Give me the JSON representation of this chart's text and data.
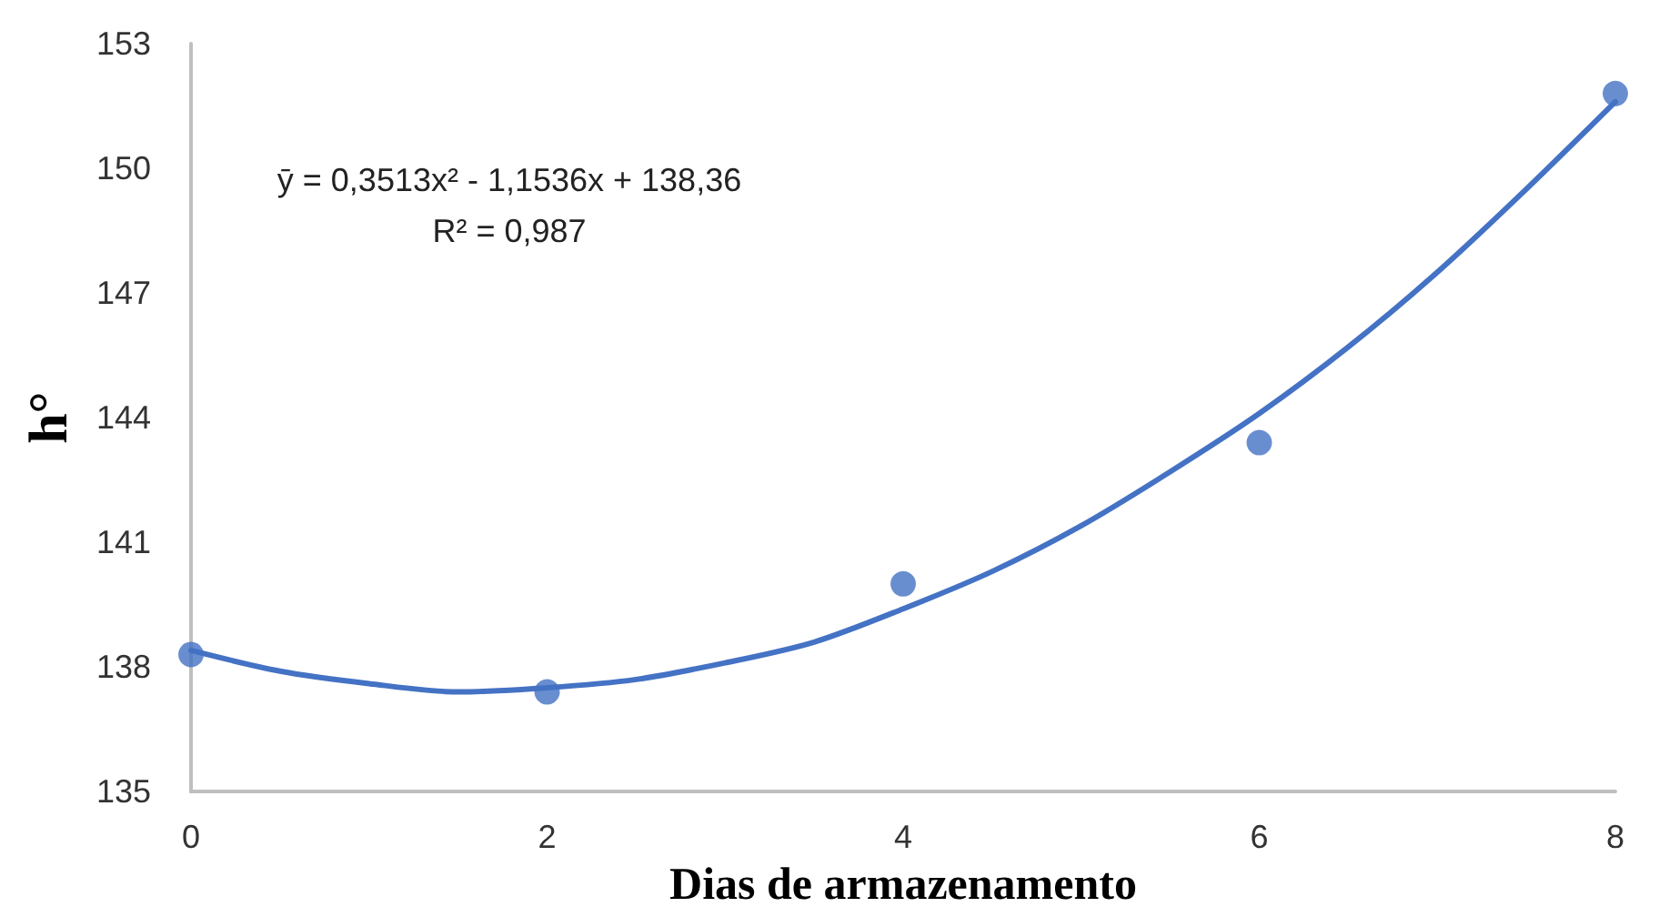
{
  "chart_data": {
    "type": "scatter",
    "xlabel": "Dias de armazenamento",
    "ylabel": "h°",
    "annotations": [
      "ȳ = 0,3513x² - 1,1536x + 138,36",
      "R² = 0,987"
    ],
    "x": [
      0,
      2,
      4,
      6,
      8
    ],
    "series": [
      {
        "color": "#4472c4",
        "marker": "circle",
        "values": [
          138.3,
          137.4,
          140.0,
          143.4,
          151.8
        ]
      },
      {
        "type": "line",
        "color": "#4472c4",
        "marker": "none",
        "line_style": "solid",
        "x": [
          0,
          0.5,
          1,
          1.5,
          2,
          2.5,
          3,
          3.5,
          4,
          4.5,
          5,
          5.5,
          6,
          6.5,
          7,
          7.5,
          8
        ],
        "values": [
          138.4,
          137.9,
          137.6,
          137.4,
          137.5,
          137.7,
          138.1,
          138.6,
          139.4,
          140.3,
          141.4,
          142.7,
          144.1,
          145.7,
          147.5,
          149.5,
          151.6
        ]
      }
    ],
    "xlim": [
      0,
      8
    ],
    "xticks": [
      0,
      2,
      4,
      6,
      8
    ],
    "ylim": [
      135,
      153
    ],
    "yticks": [
      135,
      138,
      141,
      144,
      147,
      150,
      153
    ],
    "grid": false
  }
}
